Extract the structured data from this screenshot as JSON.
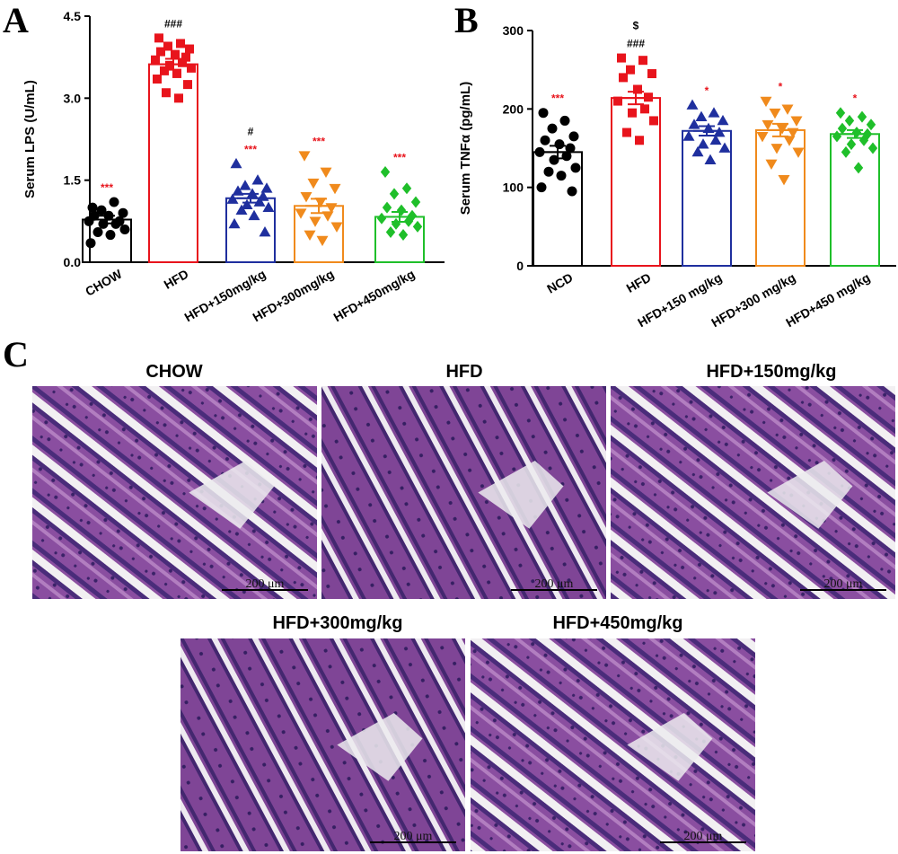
{
  "colors": {
    "chow": "#000000",
    "hfd": "#e8141c",
    "hfd150": "#1f2f9e",
    "hfd300": "#f08a1c",
    "hfd450": "#1fbf2a",
    "sig_red": "#e8141c"
  },
  "panels": {
    "a_letter": "A",
    "b_letter": "B",
    "c_letter": "C"
  },
  "chart_data": [
    {
      "type": "bar",
      "id": "A",
      "ylabel": "Serum LPS (U/mL)",
      "ylim": [
        0,
        4.5
      ],
      "yticks": [
        "0.0",
        "1.5",
        "3.0",
        "4.5"
      ],
      "categories": [
        "CHOW",
        "HFD",
        "HFD+150mg/kg",
        "HFD+300mg/kg",
        "HFD+450mg/kg"
      ],
      "values": [
        0.78,
        3.62,
        1.17,
        1.03,
        0.83
      ],
      "sem": [
        0.07,
        0.1,
        0.08,
        0.13,
        0.09
      ],
      "markers": [
        "circle",
        "square",
        "triangle",
        "triangle-down",
        "diamond"
      ],
      "points": [
        [
          1.0,
          1.1,
          0.95,
          0.9,
          0.85,
          0.85,
          0.75,
          0.75,
          0.7,
          0.7,
          0.6,
          0.55,
          0.5,
          0.35
        ],
        [
          4.1,
          4.0,
          3.95,
          3.9,
          3.85,
          3.8,
          3.75,
          3.7,
          3.65,
          3.6,
          3.55,
          3.5,
          3.45,
          3.35,
          3.25,
          3.1,
          3.0
        ],
        [
          1.8,
          1.5,
          1.4,
          1.35,
          1.3,
          1.25,
          1.2,
          1.15,
          1.1,
          1.05,
          1.0,
          0.95,
          0.85,
          0.7,
          0.55
        ],
        [
          1.95,
          1.65,
          1.45,
          1.35,
          1.2,
          1.1,
          1.0,
          0.9,
          0.85,
          0.75,
          0.65,
          0.5,
          0.4
        ],
        [
          1.65,
          1.35,
          1.25,
          1.1,
          1.0,
          0.95,
          0.85,
          0.8,
          0.75,
          0.7,
          0.65,
          0.55,
          0.5
        ]
      ],
      "annotations_above": [
        [
          "***"
        ],
        [
          "###"
        ],
        [
          "#",
          "***"
        ],
        [
          "***"
        ],
        [
          "***"
        ]
      ],
      "annotation_colors": [
        [
          "red"
        ],
        [
          "black"
        ],
        [
          "black",
          "red"
        ],
        [
          "red"
        ],
        [
          "red"
        ]
      ]
    },
    {
      "type": "bar",
      "id": "B",
      "ylabel": "Serum TNFα (pg/mL)",
      "ylim": [
        0,
        300
      ],
      "yticks": [
        "0",
        "100",
        "200",
        "300"
      ],
      "categories": [
        "NCD",
        "HFD",
        "HFD+150 mg/kg",
        "HFD+300 mg/kg",
        "HFD+450 mg/kg"
      ],
      "values": [
        145,
        214,
        172,
        173,
        168
      ],
      "sem": [
        8,
        8,
        6,
        8,
        5
      ],
      "markers": [
        "circle",
        "square",
        "triangle",
        "triangle-down",
        "diamond"
      ],
      "points": [
        [
          195,
          185,
          175,
          165,
          160,
          155,
          150,
          145,
          140,
          135,
          125,
          120,
          115,
          100,
          95
        ],
        [
          265,
          262,
          250,
          245,
          240,
          225,
          215,
          210,
          200,
          195,
          185,
          170,
          160
        ],
        [
          205,
          195,
          190,
          185,
          180,
          175,
          170,
          165,
          160,
          155,
          150,
          145,
          135
        ],
        [
          210,
          200,
          195,
          185,
          180,
          175,
          170,
          165,
          160,
          150,
          145,
          130,
          110
        ],
        [
          195,
          190,
          185,
          180,
          175,
          170,
          168,
          165,
          160,
          155,
          150,
          145,
          125
        ]
      ],
      "annotations_above": [
        [
          "***"
        ],
        [
          "$",
          "###"
        ],
        [
          "*"
        ],
        [
          "*"
        ],
        [
          "*"
        ]
      ],
      "annotation_colors": [
        [
          "red"
        ],
        [
          "black",
          "black"
        ],
        [
          "red"
        ],
        [
          "red"
        ],
        [
          "red"
        ]
      ]
    }
  ],
  "micrographs": [
    {
      "title": "CHOW",
      "scale": "200 μm"
    },
    {
      "title": "HFD",
      "scale": "200 μm"
    },
    {
      "title": "HFD+150mg/kg",
      "scale": "200 μm"
    },
    {
      "title": "HFD+300mg/kg",
      "scale": "200 μm"
    },
    {
      "title": "HFD+450mg/kg",
      "scale": "200 μm"
    }
  ]
}
